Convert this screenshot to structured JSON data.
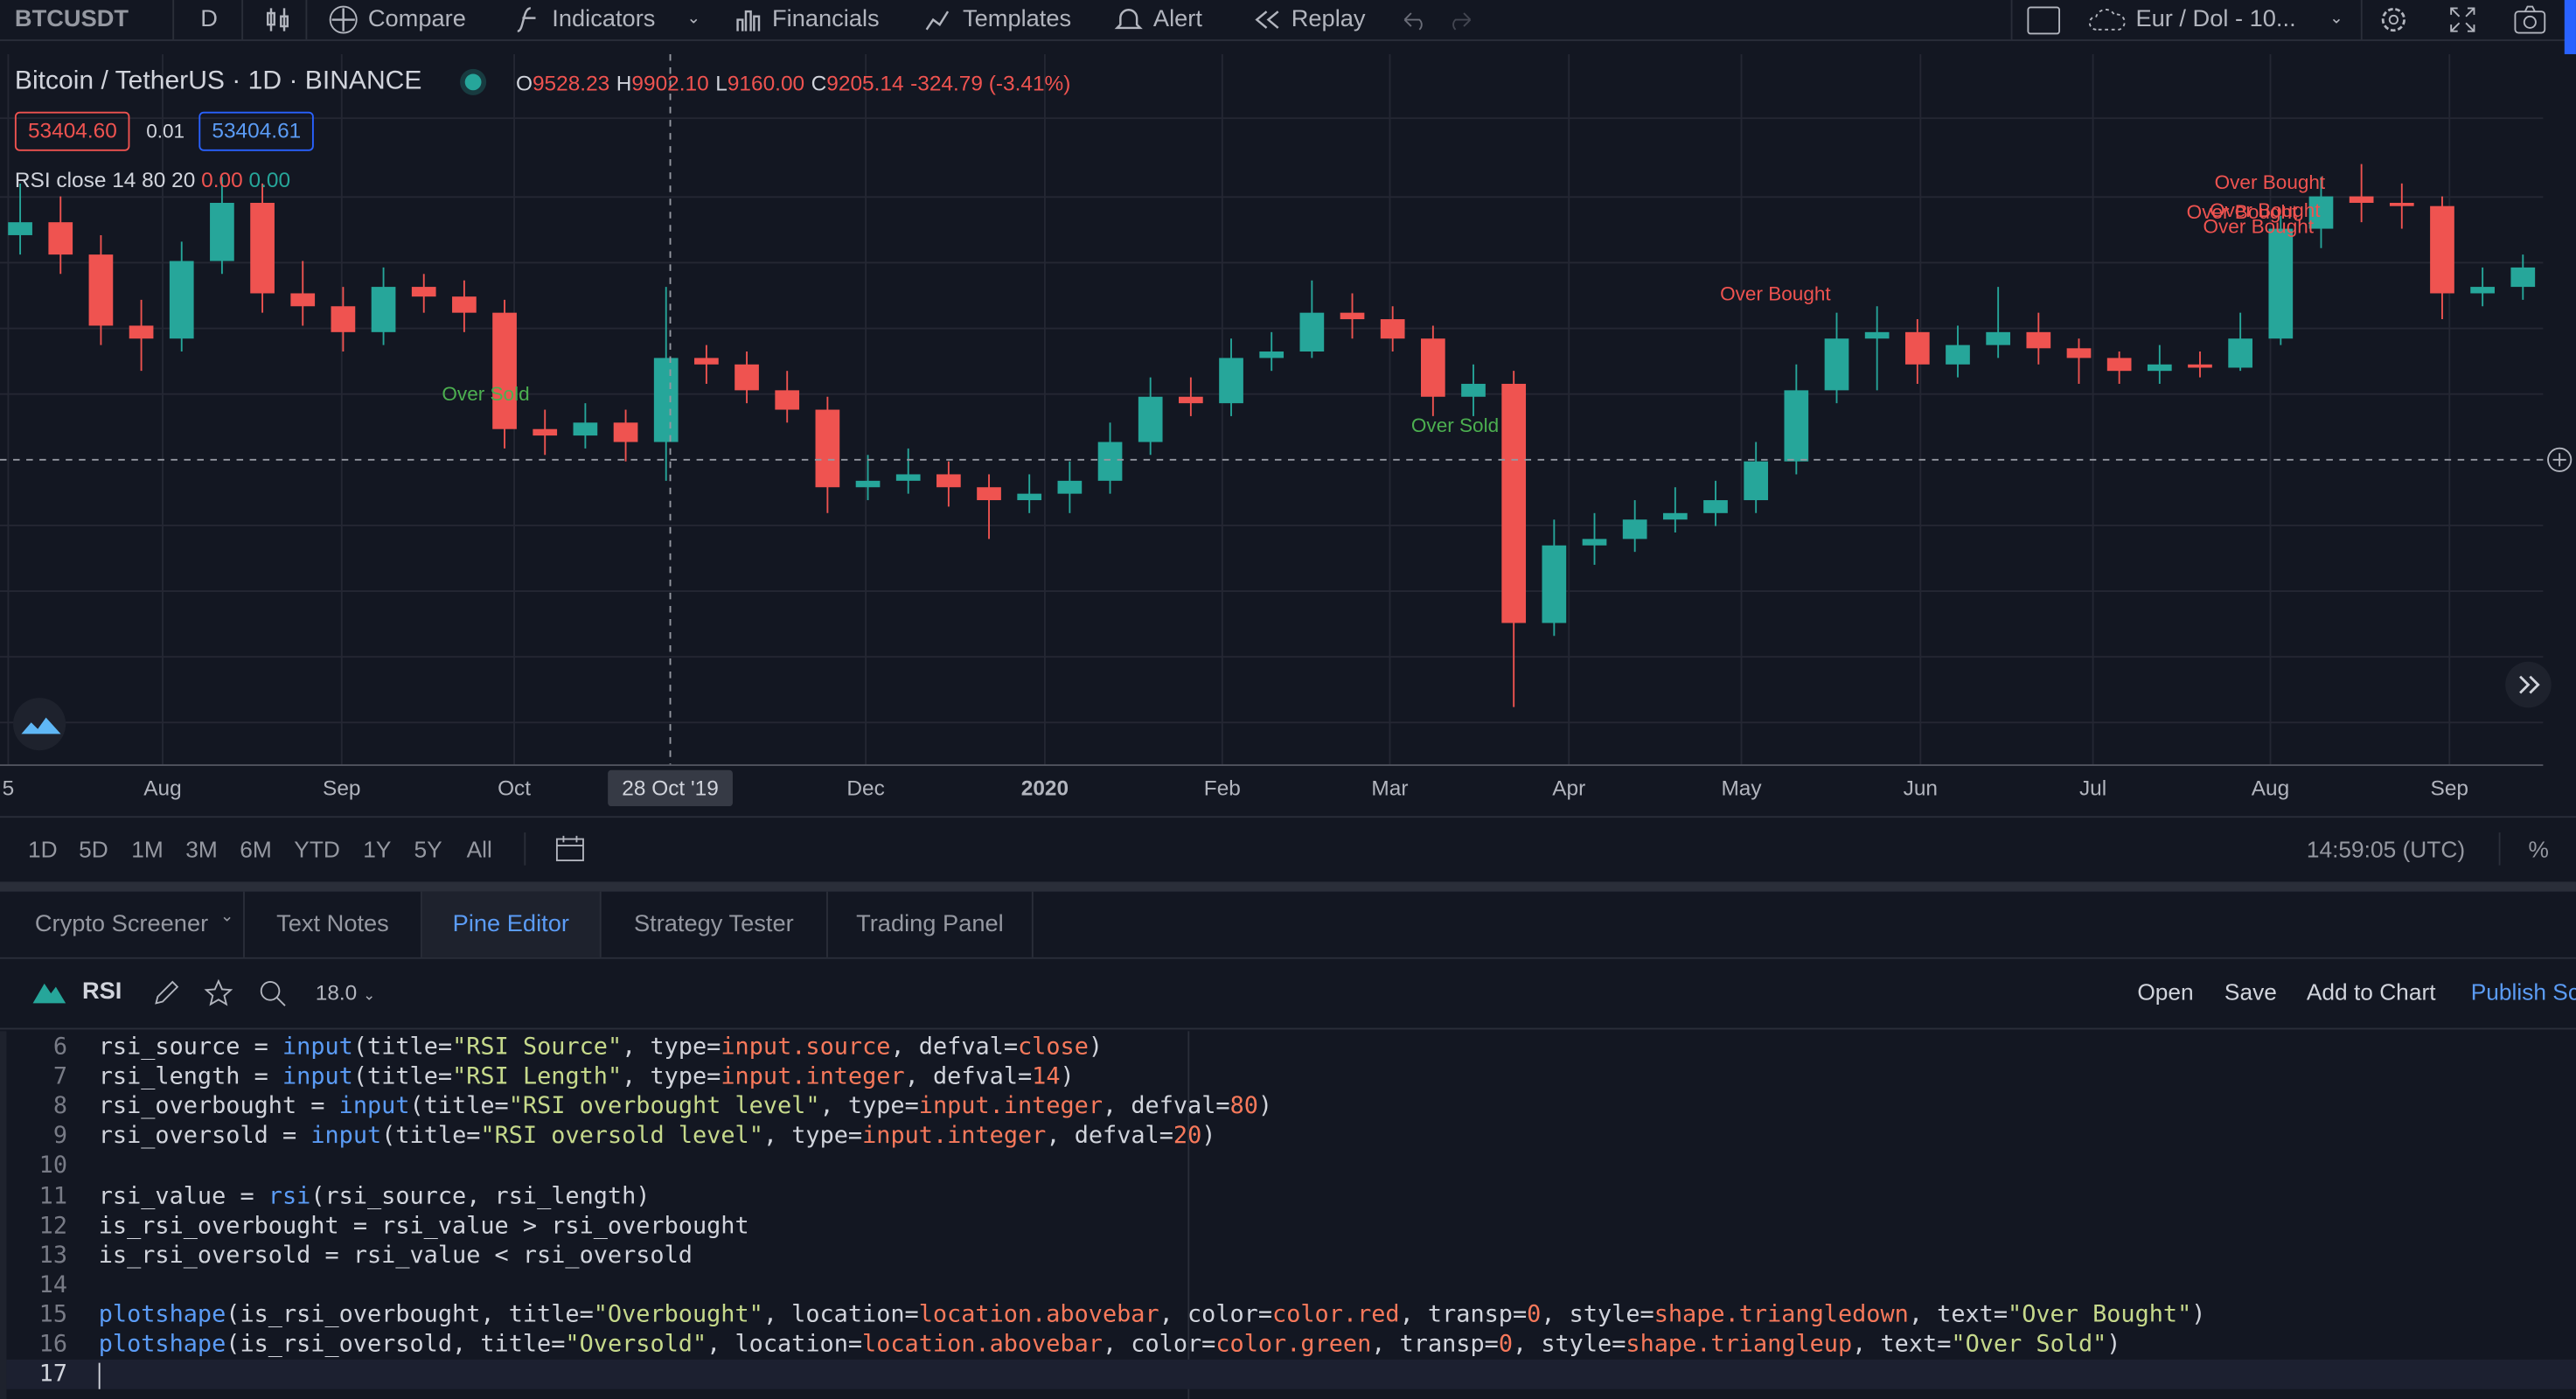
{
  "toolbar": {
    "symbol": "BTCUSDT",
    "interval": "D",
    "buttons": [
      "Compare",
      "Indicators",
      "Financials",
      "Templates",
      "Alert",
      "Replay"
    ],
    "layout": "Eur / Dol - 10..."
  },
  "legend": {
    "symbol_name": "Bitcoin / TetherUS",
    "interval": "1D",
    "exchange": "BINANCE",
    "ohlc": [
      {
        "label": "O",
        "value": "9528.23"
      },
      {
        "label": "H",
        "value": "9902.10"
      },
      {
        "label": "L",
        "value": "9160.00"
      },
      {
        "label": "C",
        "value": "9205.14"
      }
    ],
    "change": "-324.79 (-3.41%)",
    "bid": "53404.60",
    "spread": "0.01",
    "ask": "53404.61",
    "indicator": "RSI close 14 80 20",
    "indicator_values": [
      "0.00",
      "0.00"
    ]
  },
  "annotations": [
    "Over Sold",
    "Over Sold",
    "Over Bought",
    "Over Bought",
    "Over Bought",
    "Over Bought",
    "Over Bought"
  ],
  "chart": {
    "type": "candlestick",
    "ylim": [
      3000,
      14000
    ],
    "up_color": "#26a69a",
    "down_color": "#ef5350",
    "open": [
      11200,
      11400,
      10900,
      9800,
      9600,
      10800,
      11700,
      10300,
      10100,
      9700,
      10400,
      10250,
      10000,
      8200,
      8100,
      8300,
      8000,
      9300,
      9200,
      8800,
      8500,
      7300,
      7400,
      7500,
      7300,
      7100,
      7200,
      7400,
      8000,
      8700,
      8600,
      9300,
      9400,
      10000,
      9900,
      9600,
      8700,
      8900,
      5200,
      6400,
      6500,
      6800,
      6900,
      7100,
      7700,
      8800,
      9600,
      9700,
      9200,
      9500,
      9700,
      9450,
      9300,
      9100,
      9200,
      9150,
      9600,
      11300,
      11800,
      11700,
      11650,
      10300,
      10400
    ],
    "high": [
      12000,
      11800,
      11200,
      10200,
      11100,
      12100,
      12000,
      10800,
      10400,
      10700,
      10600,
      10500,
      10200,
      8500,
      8600,
      8500,
      10400,
      9500,
      9400,
      9100,
      8700,
      7800,
      7900,
      7700,
      7500,
      7500,
      7700,
      8300,
      9000,
      9000,
      9600,
      9700,
      10500,
      10300,
      10100,
      9800,
      9200,
      9100,
      6800,
      6900,
      7100,
      7300,
      7400,
      8000,
      9200,
      10000,
      10100,
      9900,
      9800,
      10400,
      10000,
      9600,
      9400,
      9500,
      9400,
      10000,
      11500,
      12100,
      12300,
      12000,
      11800,
      10700,
      10900
    ],
    "low": [
      10900,
      10600,
      9500,
      9100,
      9400,
      10600,
      10000,
      9800,
      9400,
      9500,
      10000,
      9700,
      7900,
      7800,
      7900,
      7700,
      7400,
      8900,
      8600,
      8300,
      6900,
      7100,
      7200,
      7000,
      6500,
      6900,
      6900,
      7200,
      7800,
      8400,
      8400,
      9100,
      9300,
      9600,
      9400,
      8400,
      8400,
      3900,
      5000,
      6100,
      6300,
      6600,
      6700,
      6900,
      7500,
      8600,
      8800,
      8900,
      9000,
      9300,
      9200,
      8900,
      8900,
      8900,
      9000,
      9100,
      9500,
      11000,
      11400,
      11300,
      9900,
      10100,
      10200
    ],
    "close": [
      11400,
      10900,
      9800,
      9600,
      10800,
      11700,
      10300,
      10100,
      9700,
      10400,
      10250,
      10000,
      8200,
      8100,
      8300,
      8000,
      9300,
      9200,
      8800,
      8500,
      7300,
      7400,
      7500,
      7300,
      7100,
      7200,
      7400,
      8000,
      8700,
      8600,
      9300,
      9400,
      10000,
      9900,
      9600,
      8700,
      8900,
      5200,
      6400,
      6500,
      6800,
      6900,
      7100,
      7700,
      8800,
      9600,
      9700,
      9200,
      9500,
      9700,
      9450,
      9300,
      9100,
      9200,
      9150,
      9600,
      11300,
      11800,
      11700,
      11650,
      10300,
      10400,
      10700
    ]
  },
  "x_axis": {
    "labels": [
      "5",
      "Aug",
      "Sep",
      "Oct",
      "Dec",
      "2020",
      "Feb",
      "Mar",
      "Apr",
      "May",
      "Jun",
      "Jul",
      "Aug",
      "Sep"
    ],
    "crosshair": "28 Oct '19"
  },
  "range_bar": {
    "ranges": [
      "1D",
      "5D",
      "1M",
      "3M",
      "6M",
      "YTD",
      "1Y",
      "5Y",
      "All"
    ],
    "time": "14:59:05 (UTC)",
    "percent": "%"
  },
  "tabs": {
    "items": [
      "Crypto Screener",
      "Text Notes",
      "Pine Editor",
      "Strategy Tester",
      "Trading Panel"
    ],
    "active": "Pine Editor"
  },
  "editor": {
    "script_name": "RSI",
    "font_size": "18.0",
    "actions": [
      "Open",
      "Save",
      "Add to Chart",
      "Publish Sc"
    ],
    "lines": [
      {
        "number": 6,
        "text": "rsi_source = input(title=\"RSI Source\", type=input.source, defval=close)"
      },
      {
        "number": 7,
        "text": "rsi_length = input(title=\"RSI Length\", type=input.integer, defval=14)"
      },
      {
        "number": 8,
        "text": "rsi_overbought = input(title=\"RSI overbought level\", type=input.integer, defval=80)"
      },
      {
        "number": 9,
        "text": "rsi_oversold = input(title=\"RSI oversold level\", type=input.integer, defval=20)"
      },
      {
        "number": 10
      },
      {
        "number": 11,
        "text": "rsi_value = rsi(rsi_source, rsi_length)"
      },
      {
        "number": 12,
        "text": "is_rsi_overbought = rsi_value > rsi_overbought"
      },
      {
        "number": 13,
        "text": "is_rsi_oversold = rsi_value < rsi_oversold"
      },
      {
        "number": 14
      },
      {
        "number": 15,
        "text": "plotshape(is_rsi_overbought, title=\"Overbought\", location=location.abovebar, color=color.red, transp=0, style=shape.triangledown, text=\"Over Bought\")"
      },
      {
        "number": 16,
        "text": "plotshape(is_rsi_oversold, title=\"Oversold\", location=location.abovebar, color=color.green, transp=0, style=shape.triangleup, text=\"Over Sold\")"
      },
      {
        "number": 17
      }
    ]
  }
}
